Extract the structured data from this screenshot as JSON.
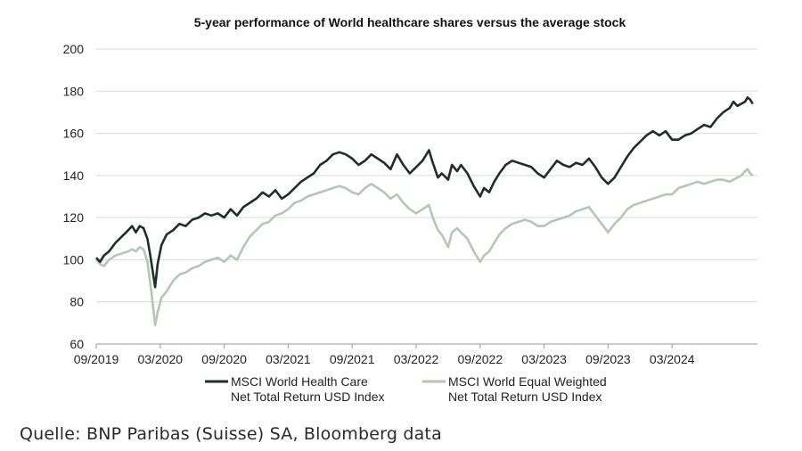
{
  "chart_data": {
    "type": "line",
    "title": "5-year performance of World healthcare shares versus the average stock",
    "xlabel": "",
    "ylabel": "",
    "ylim": [
      60,
      200
    ],
    "yticks": [
      60,
      80,
      100,
      120,
      140,
      160,
      180,
      200
    ],
    "xlim": [
      2019.75,
      2024.917
    ],
    "xticks": [
      {
        "label": "09/2019",
        "value": 2019.75
      },
      {
        "label": "03/2020",
        "value": 2020.25
      },
      {
        "label": "09/2020",
        "value": 2020.75
      },
      {
        "label": "03/2021",
        "value": 2021.25
      },
      {
        "label": "09/2021",
        "value": 2021.75
      },
      {
        "label": "03/2022",
        "value": 2022.25
      },
      {
        "label": "09/2022",
        "value": 2022.75
      },
      {
        "label": "03/2023",
        "value": 2023.25
      },
      {
        "label": "09/2023",
        "value": 2023.75
      },
      {
        "label": "03/2024",
        "value": 2024.25
      }
    ],
    "grid": true,
    "series": [
      {
        "name_line1": "MSCI World Health Care",
        "name_line2": "Net Total Return USD Index",
        "color": "#1f2e2a",
        "points": [
          [
            2019.75,
            101
          ],
          [
            2019.78,
            99
          ],
          [
            2019.81,
            102
          ],
          [
            2019.85,
            104
          ],
          [
            2019.9,
            108
          ],
          [
            2019.95,
            111
          ],
          [
            2020.0,
            114
          ],
          [
            2020.03,
            116
          ],
          [
            2020.06,
            113
          ],
          [
            2020.09,
            116
          ],
          [
            2020.12,
            115
          ],
          [
            2020.15,
            110
          ],
          [
            2020.17,
            103
          ],
          [
            2020.19,
            95
          ],
          [
            2020.21,
            87
          ],
          [
            2020.23,
            98
          ],
          [
            2020.26,
            107
          ],
          [
            2020.3,
            112
          ],
          [
            2020.35,
            114
          ],
          [
            2020.4,
            117
          ],
          [
            2020.45,
            116
          ],
          [
            2020.5,
            119
          ],
          [
            2020.55,
            120
          ],
          [
            2020.6,
            122
          ],
          [
            2020.65,
            121
          ],
          [
            2020.7,
            122
          ],
          [
            2020.75,
            120
          ],
          [
            2020.8,
            124
          ],
          [
            2020.85,
            121
          ],
          [
            2020.9,
            125
          ],
          [
            2020.95,
            127
          ],
          [
            2021.0,
            129
          ],
          [
            2021.05,
            132
          ],
          [
            2021.1,
            130
          ],
          [
            2021.15,
            133
          ],
          [
            2021.2,
            129
          ],
          [
            2021.25,
            131
          ],
          [
            2021.3,
            134
          ],
          [
            2021.35,
            137
          ],
          [
            2021.4,
            139
          ],
          [
            2021.45,
            141
          ],
          [
            2021.5,
            145
          ],
          [
            2021.55,
            147
          ],
          [
            2021.6,
            150
          ],
          [
            2021.65,
            151
          ],
          [
            2021.7,
            150
          ],
          [
            2021.75,
            148
          ],
          [
            2021.8,
            145
          ],
          [
            2021.85,
            147
          ],
          [
            2021.9,
            150
          ],
          [
            2021.95,
            148
          ],
          [
            2022.0,
            146
          ],
          [
            2022.05,
            143
          ],
          [
            2022.1,
            150
          ],
          [
            2022.15,
            145
          ],
          [
            2022.2,
            141
          ],
          [
            2022.25,
            144
          ],
          [
            2022.3,
            147
          ],
          [
            2022.35,
            152
          ],
          [
            2022.38,
            146
          ],
          [
            2022.42,
            139
          ],
          [
            2022.45,
            141
          ],
          [
            2022.5,
            138
          ],
          [
            2022.53,
            145
          ],
          [
            2022.57,
            142
          ],
          [
            2022.6,
            145
          ],
          [
            2022.65,
            141
          ],
          [
            2022.7,
            135
          ],
          [
            2022.75,
            130
          ],
          [
            2022.78,
            134
          ],
          [
            2022.82,
            132
          ],
          [
            2022.86,
            137
          ],
          [
            2022.9,
            141
          ],
          [
            2022.95,
            145
          ],
          [
            2023.0,
            147
          ],
          [
            2023.05,
            146
          ],
          [
            2023.1,
            145
          ],
          [
            2023.15,
            144
          ],
          [
            2023.2,
            141
          ],
          [
            2023.25,
            139
          ],
          [
            2023.3,
            143
          ],
          [
            2023.35,
            147
          ],
          [
            2023.4,
            145
          ],
          [
            2023.45,
            144
          ],
          [
            2023.5,
            146
          ],
          [
            2023.55,
            145
          ],
          [
            2023.6,
            148
          ],
          [
            2023.65,
            144
          ],
          [
            2023.7,
            139
          ],
          [
            2023.75,
            136
          ],
          [
            2023.8,
            139
          ],
          [
            2023.85,
            144
          ],
          [
            2023.9,
            149
          ],
          [
            2023.95,
            153
          ],
          [
            2024.0,
            156
          ],
          [
            2024.05,
            159
          ],
          [
            2024.1,
            161
          ],
          [
            2024.15,
            159
          ],
          [
            2024.2,
            161
          ],
          [
            2024.25,
            157
          ],
          [
            2024.3,
            157
          ],
          [
            2024.35,
            159
          ],
          [
            2024.4,
            160
          ],
          [
            2024.45,
            162
          ],
          [
            2024.5,
            164
          ],
          [
            2024.55,
            163
          ],
          [
            2024.6,
            167
          ],
          [
            2024.65,
            170
          ],
          [
            2024.7,
            172
          ],
          [
            2024.73,
            175
          ],
          [
            2024.76,
            173
          ],
          [
            2024.79,
            174
          ],
          [
            2024.82,
            175
          ],
          [
            2024.84,
            177
          ],
          [
            2024.86,
            176
          ],
          [
            2024.88,
            174
          ]
        ]
      },
      {
        "name_line1": "MSCI World Equal Weighted",
        "name_line2": "Net Total Return USD Index",
        "color": "#b4c6b7",
        "points": [
          [
            2019.75,
            100
          ],
          [
            2019.78,
            98
          ],
          [
            2019.81,
            97
          ],
          [
            2019.85,
            100
          ],
          [
            2019.9,
            102
          ],
          [
            2019.95,
            103
          ],
          [
            2020.0,
            104
          ],
          [
            2020.03,
            105
          ],
          [
            2020.06,
            104
          ],
          [
            2020.09,
            106
          ],
          [
            2020.12,
            105
          ],
          [
            2020.15,
            99
          ],
          [
            2020.17,
            90
          ],
          [
            2020.19,
            80
          ],
          [
            2020.21,
            69
          ],
          [
            2020.23,
            75
          ],
          [
            2020.26,
            82
          ],
          [
            2020.3,
            85
          ],
          [
            2020.35,
            90
          ],
          [
            2020.4,
            93
          ],
          [
            2020.45,
            94
          ],
          [
            2020.5,
            96
          ],
          [
            2020.55,
            97
          ],
          [
            2020.6,
            99
          ],
          [
            2020.65,
            100
          ],
          [
            2020.7,
            101
          ],
          [
            2020.75,
            99
          ],
          [
            2020.8,
            102
          ],
          [
            2020.85,
            100
          ],
          [
            2020.9,
            106
          ],
          [
            2020.95,
            111
          ],
          [
            2021.0,
            114
          ],
          [
            2021.05,
            117
          ],
          [
            2021.1,
            118
          ],
          [
            2021.15,
            121
          ],
          [
            2021.2,
            122
          ],
          [
            2021.25,
            124
          ],
          [
            2021.3,
            127
          ],
          [
            2021.35,
            128
          ],
          [
            2021.4,
            130
          ],
          [
            2021.45,
            131
          ],
          [
            2021.5,
            132
          ],
          [
            2021.55,
            133
          ],
          [
            2021.6,
            134
          ],
          [
            2021.65,
            135
          ],
          [
            2021.7,
            134
          ],
          [
            2021.75,
            132
          ],
          [
            2021.8,
            131
          ],
          [
            2021.85,
            134
          ],
          [
            2021.9,
            136
          ],
          [
            2021.95,
            134
          ],
          [
            2022.0,
            132
          ],
          [
            2022.05,
            129
          ],
          [
            2022.1,
            131
          ],
          [
            2022.15,
            127
          ],
          [
            2022.2,
            124
          ],
          [
            2022.25,
            122
          ],
          [
            2022.3,
            124
          ],
          [
            2022.35,
            126
          ],
          [
            2022.38,
            120
          ],
          [
            2022.42,
            114
          ],
          [
            2022.45,
            112
          ],
          [
            2022.5,
            106
          ],
          [
            2022.53,
            113
          ],
          [
            2022.57,
            115
          ],
          [
            2022.6,
            113
          ],
          [
            2022.65,
            110
          ],
          [
            2022.7,
            104
          ],
          [
            2022.75,
            99
          ],
          [
            2022.78,
            102
          ],
          [
            2022.82,
            104
          ],
          [
            2022.86,
            108
          ],
          [
            2022.9,
            112
          ],
          [
            2022.95,
            115
          ],
          [
            2023.0,
            117
          ],
          [
            2023.05,
            118
          ],
          [
            2023.1,
            119
          ],
          [
            2023.15,
            118
          ],
          [
            2023.2,
            116
          ],
          [
            2023.25,
            116
          ],
          [
            2023.3,
            118
          ],
          [
            2023.35,
            119
          ],
          [
            2023.4,
            120
          ],
          [
            2023.45,
            121
          ],
          [
            2023.5,
            123
          ],
          [
            2023.55,
            124
          ],
          [
            2023.6,
            125
          ],
          [
            2023.65,
            121
          ],
          [
            2023.7,
            117
          ],
          [
            2023.75,
            113
          ],
          [
            2023.8,
            117
          ],
          [
            2023.85,
            120
          ],
          [
            2023.9,
            124
          ],
          [
            2023.95,
            126
          ],
          [
            2024.0,
            127
          ],
          [
            2024.05,
            128
          ],
          [
            2024.1,
            129
          ],
          [
            2024.15,
            130
          ],
          [
            2024.2,
            131
          ],
          [
            2024.25,
            131
          ],
          [
            2024.3,
            134
          ],
          [
            2024.35,
            135
          ],
          [
            2024.4,
            136
          ],
          [
            2024.45,
            137
          ],
          [
            2024.5,
            136
          ],
          [
            2024.55,
            137
          ],
          [
            2024.6,
            138
          ],
          [
            2024.65,
            138
          ],
          [
            2024.7,
            137
          ],
          [
            2024.73,
            138
          ],
          [
            2024.76,
            139
          ],
          [
            2024.79,
            140
          ],
          [
            2024.82,
            142
          ],
          [
            2024.84,
            143
          ],
          [
            2024.86,
            141
          ],
          [
            2024.88,
            140
          ]
        ]
      }
    ]
  },
  "source": "Quelle: BNP Paribas (Suisse) SA, Bloomberg data"
}
